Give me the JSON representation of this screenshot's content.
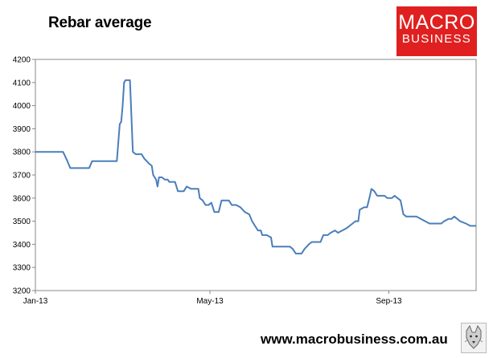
{
  "chart_data": {
    "type": "line",
    "title": "Rebar average",
    "xlabel": "",
    "ylabel": "",
    "ylim": [
      3200,
      4200
    ],
    "yticks": [
      3200,
      3300,
      3400,
      3500,
      3600,
      3700,
      3800,
      3900,
      4000,
      4100,
      4200
    ],
    "xlim": [
      "2013-01-01",
      "2013-10-31"
    ],
    "xticks": [
      {
        "label": "Jan-13",
        "date": "2013-01-01"
      },
      {
        "label": "May-13",
        "date": "2013-05-01"
      },
      {
        "label": "Sep-13",
        "date": "2013-09-01"
      }
    ],
    "grid": false,
    "legend": "none",
    "line_color": "#4a7ebb",
    "series": [
      {
        "name": "",
        "points": [
          [
            "2013-01-01",
            3800
          ],
          [
            "2013-01-20",
            3800
          ],
          [
            "2013-01-23",
            3760
          ],
          [
            "2013-01-25",
            3730
          ],
          [
            "2013-02-07",
            3730
          ],
          [
            "2013-02-09",
            3760
          ],
          [
            "2013-02-26",
            3760
          ],
          [
            "2013-02-28",
            3920
          ],
          [
            "2013-03-01",
            3930
          ],
          [
            "2013-03-02",
            4000
          ],
          [
            "2013-03-03",
            4100
          ],
          [
            "2013-03-04",
            4110
          ],
          [
            "2013-03-07",
            4110
          ],
          [
            "2013-03-09",
            3800
          ],
          [
            "2013-03-11",
            3790
          ],
          [
            "2013-03-15",
            3790
          ],
          [
            "2013-03-17",
            3770
          ],
          [
            "2013-03-20",
            3750
          ],
          [
            "2013-03-22",
            3740
          ],
          [
            "2013-03-23",
            3700
          ],
          [
            "2013-03-25",
            3680
          ],
          [
            "2013-03-26",
            3650
          ],
          [
            "2013-03-27",
            3690
          ],
          [
            "2013-03-29",
            3690
          ],
          [
            "2013-03-31",
            3680
          ],
          [
            "2013-04-02",
            3680
          ],
          [
            "2013-04-03",
            3670
          ],
          [
            "2013-04-07",
            3670
          ],
          [
            "2013-04-09",
            3630
          ],
          [
            "2013-04-13",
            3630
          ],
          [
            "2013-04-15",
            3650
          ],
          [
            "2013-04-18",
            3640
          ],
          [
            "2013-04-23",
            3640
          ],
          [
            "2013-04-24",
            3600
          ],
          [
            "2013-04-26",
            3590
          ],
          [
            "2013-04-28",
            3570
          ],
          [
            "2013-04-30",
            3570
          ],
          [
            "2013-05-02",
            3580
          ],
          [
            "2013-05-04",
            3540
          ],
          [
            "2013-05-07",
            3540
          ],
          [
            "2013-05-09",
            3590
          ],
          [
            "2013-05-14",
            3590
          ],
          [
            "2013-05-16",
            3570
          ],
          [
            "2013-05-19",
            3570
          ],
          [
            "2013-05-22",
            3560
          ],
          [
            "2013-05-25",
            3540
          ],
          [
            "2013-05-28",
            3530
          ],
          [
            "2013-05-30",
            3500
          ],
          [
            "2013-06-01",
            3480
          ],
          [
            "2013-06-03",
            3460
          ],
          [
            "2013-06-05",
            3460
          ],
          [
            "2013-06-06",
            3440
          ],
          [
            "2013-06-09",
            3440
          ],
          [
            "2013-06-12",
            3430
          ],
          [
            "2013-06-13",
            3390
          ],
          [
            "2013-06-25",
            3390
          ],
          [
            "2013-06-27",
            3380
          ],
          [
            "2013-06-29",
            3360
          ],
          [
            "2013-07-03",
            3360
          ],
          [
            "2013-07-05",
            3380
          ],
          [
            "2013-07-08",
            3400
          ],
          [
            "2013-07-10",
            3410
          ],
          [
            "2013-07-16",
            3410
          ],
          [
            "2013-07-18",
            3440
          ],
          [
            "2013-07-21",
            3440
          ],
          [
            "2013-07-23",
            3450
          ],
          [
            "2013-07-26",
            3460
          ],
          [
            "2013-07-28",
            3450
          ],
          [
            "2013-07-31",
            3460
          ],
          [
            "2013-08-03",
            3470
          ],
          [
            "2013-08-05",
            3480
          ],
          [
            "2013-08-07",
            3490
          ],
          [
            "2013-08-09",
            3500
          ],
          [
            "2013-08-11",
            3500
          ],
          [
            "2013-08-12",
            3550
          ],
          [
            "2013-08-15",
            3560
          ],
          [
            "2013-08-17",
            3560
          ],
          [
            "2013-08-19",
            3610
          ],
          [
            "2013-08-20",
            3640
          ],
          [
            "2013-08-22",
            3630
          ],
          [
            "2013-08-24",
            3610
          ],
          [
            "2013-08-29",
            3610
          ],
          [
            "2013-08-31",
            3600
          ],
          [
            "2013-09-03",
            3600
          ],
          [
            "2013-09-05",
            3610
          ],
          [
            "2013-09-07",
            3600
          ],
          [
            "2013-09-09",
            3590
          ],
          [
            "2013-09-10",
            3560
          ],
          [
            "2013-09-11",
            3530
          ],
          [
            "2013-09-13",
            3520
          ],
          [
            "2013-09-16",
            3520
          ],
          [
            "2013-09-20",
            3520
          ],
          [
            "2013-09-23",
            3510
          ],
          [
            "2013-09-26",
            3500
          ],
          [
            "2013-09-29",
            3490
          ],
          [
            "2013-10-07",
            3490
          ],
          [
            "2013-10-09",
            3500
          ],
          [
            "2013-10-12",
            3510
          ],
          [
            "2013-10-14",
            3510
          ],
          [
            "2013-10-16",
            3520
          ],
          [
            "2013-10-18",
            3510
          ],
          [
            "2013-10-20",
            3500
          ],
          [
            "2013-10-24",
            3490
          ],
          [
            "2013-10-27",
            3480
          ],
          [
            "2013-10-31",
            3480
          ]
        ]
      }
    ]
  },
  "brand": {
    "logo_line1": "MACRO",
    "logo_line2": "BUSINESS",
    "logo_color": "#e02020",
    "url": "www.macrobusiness.com.au",
    "mascot_icon": "wolf-icon"
  }
}
